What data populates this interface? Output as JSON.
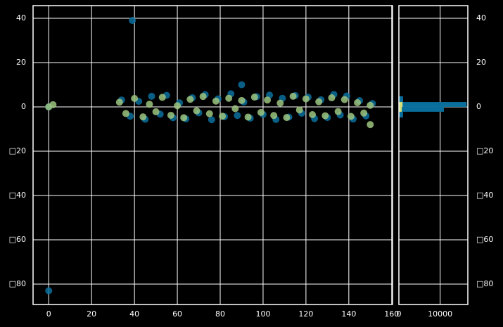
{
  "chart_data": [
    {
      "type": "scatter",
      "xlim": [
        -7.3,
        160.4
      ],
      "ylim": [
        -89.2,
        45.7
      ],
      "xticks": [
        0,
        20,
        40,
        60,
        80,
        100,
        120,
        140,
        160
      ],
      "yticks": [
        {
          "value": -80,
          "label": "□80"
        },
        {
          "value": -60,
          "label": "□60"
        },
        {
          "value": -40,
          "label": "□40"
        },
        {
          "value": -20,
          "label": "□20"
        },
        0,
        20,
        40
      ],
      "grid": true,
      "series": [
        {
          "color": "#0a6e9c",
          "x": [
            34,
            38,
            42,
            45,
            48,
            52,
            55,
            58,
            61,
            64,
            67,
            70,
            73,
            76,
            79,
            82,
            85,
            88,
            91,
            94,
            97,
            100,
            103,
            106,
            109,
            112,
            115,
            118,
            121,
            124,
            127,
            130,
            133,
            136,
            139,
            142,
            145,
            148,
            151,
            39,
            0,
            90,
            0
          ],
          "values": [
            3.1,
            -4.2,
            2.5,
            -5.6,
            4.8,
            -3.3,
            5.2,
            -4.9,
            1.8,
            -5.4,
            4.1,
            -2.7,
            5.5,
            -5.8,
            3.6,
            -4.4,
            5.9,
            -3.9,
            2.2,
            -5.1,
            4.6,
            -3.4,
            5.3,
            -5.7,
            3.9,
            -4.6,
            5.1,
            -2.9,
            4.4,
            -5.3,
            3.2,
            -4.8,
            5.6,
            -3.7,
            4.9,
            -5.5,
            2.8,
            -4.1,
            1.5,
            39,
            -83,
            10,
            0
          ]
        },
        {
          "color": "#9dc47f",
          "x": [
            33,
            36,
            40,
            44,
            47,
            50,
            53,
            57,
            60,
            63,
            66,
            69,
            72,
            75,
            78,
            81,
            84,
            87,
            90,
            93,
            96,
            99,
            102,
            105,
            108,
            111,
            114,
            117,
            120,
            123,
            126,
            129,
            132,
            135,
            138,
            141,
            144,
            147,
            150,
            0,
            2,
            150
          ],
          "values": [
            2.1,
            -3.0,
            3.8,
            -4.5,
            1.2,
            -2.2,
            4.3,
            -3.8,
            0.5,
            -4.9,
            3.4,
            -1.8,
            4.7,
            -3.1,
            2.6,
            -4.2,
            3.9,
            -0.8,
            2.9,
            -4.6,
            4.4,
            -2.5,
            3.1,
            -3.9,
            1.7,
            -4.8,
            4.8,
            -1.4,
            3.6,
            -3.5,
            2.3,
            -4.0,
            4.1,
            -2.1,
            3.3,
            -4.3,
            1.9,
            -2.8,
            0.7,
            0,
            1,
            -8
          ]
        }
      ]
    },
    {
      "type": "histogram",
      "orientation": "horizontal",
      "xlim": [
        0,
        16700
      ],
      "ylim": [
        -89.2,
        45.7
      ],
      "xticks": [
        0,
        10000
      ],
      "yticks": [
        {
          "value": -80,
          "label": "□80"
        },
        {
          "value": -60,
          "label": "□60"
        },
        {
          "value": -40,
          "label": "□40"
        },
        {
          "value": -20,
          "label": "□20"
        },
        0,
        20,
        40
      ],
      "grid": true,
      "series": [
        {
          "color": "#0a6e9c",
          "bins": [
            -4.8,
            -2.2,
            0,
            2.2,
            4.8
          ],
          "counts": [
            1000,
            10900,
            16400,
            1000
          ]
        },
        {
          "color": "#d4e07a",
          "bins": [
            -2.2,
            0,
            2.2
          ],
          "counts": [
            700,
            900
          ]
        }
      ]
    }
  ]
}
